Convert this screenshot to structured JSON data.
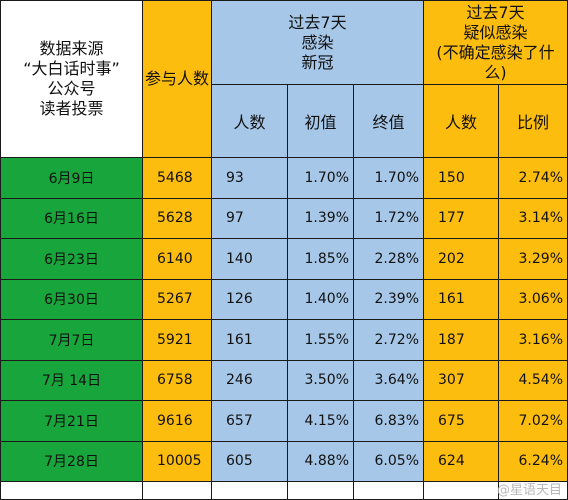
{
  "chart_data": {
    "type": "table",
    "colors": {
      "green": "#17a53c",
      "orange": "#fdbd0f",
      "blue": "#a6c7e8",
      "white": "#ffffff",
      "border": "#1a1a1a"
    },
    "header": {
      "source_lines": [
        "数据来源",
        "“大白话时事”",
        "公众号",
        "读者投票"
      ],
      "participants": "参与人数",
      "infected_group_lines": [
        "过去7天",
        "感染",
        "新冠"
      ],
      "suspected_group_lines": [
        "过去7天",
        "疑似感染",
        "(不确定感染了什",
        "么)"
      ],
      "infected_cols": [
        "人数",
        "初值",
        "终值"
      ],
      "suspected_cols": [
        "人数",
        "比例"
      ]
    },
    "rows": [
      {
        "date": "6月9日",
        "participants": "5468",
        "infected": "93",
        "initial": "1.70%",
        "final": "1.70%",
        "suspected": "150",
        "ratio": "2.74%"
      },
      {
        "date": "6月16日",
        "participants": "5628",
        "infected": "97",
        "initial": "1.39%",
        "final": "1.72%",
        "suspected": "177",
        "ratio": "3.14%"
      },
      {
        "date": "6月23日",
        "participants": "6140",
        "infected": "140",
        "initial": "1.85%",
        "final": "2.28%",
        "suspected": "202",
        "ratio": "3.29%"
      },
      {
        "date": "6月30日",
        "participants": "5267",
        "infected": "126",
        "initial": "1.40%",
        "final": "2.39%",
        "suspected": "161",
        "ratio": "3.06%"
      },
      {
        "date": "7月7日",
        "participants": "5921",
        "infected": "161",
        "initial": "1.55%",
        "final": "2.72%",
        "suspected": "187",
        "ratio": "3.16%"
      },
      {
        "date": "7月 14日",
        "participants": "6758",
        "infected": "246",
        "initial": "3.50%",
        "final": "3.64%",
        "suspected": "307",
        "ratio": "4.54%"
      },
      {
        "date": "7月21日",
        "participants": "9616",
        "infected": "657",
        "initial": "4.15%",
        "final": "6.83%",
        "suspected": "675",
        "ratio": "7.02%"
      },
      {
        "date": "7月28日",
        "participants": "10005",
        "infected": "605",
        "initial": "4.88%",
        "final": "6.05%",
        "suspected": "624",
        "ratio": "6.24%"
      }
    ]
  },
  "watermark": "@星语天目"
}
